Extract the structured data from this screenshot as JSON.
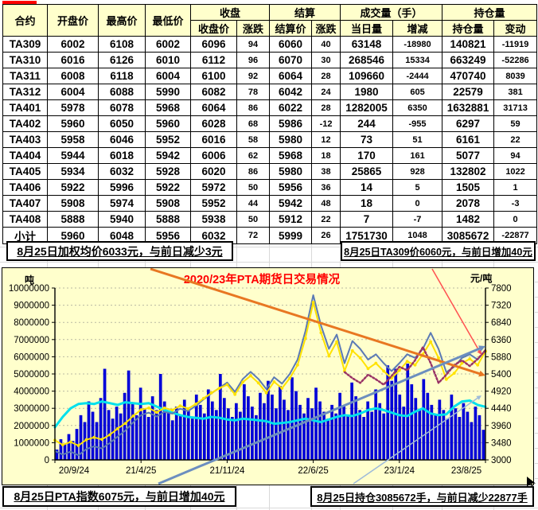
{
  "table": {
    "headers": {
      "top": [
        {
          "label": "合约",
          "rowspan": 2
        },
        {
          "label": "开盘价",
          "rowspan": 2
        },
        {
          "label": "最高价",
          "rowspan": 2
        },
        {
          "label": "最低价",
          "rowspan": 2
        },
        {
          "label": "收盘",
          "colspan": 2
        },
        {
          "label": "结算",
          "colspan": 2
        },
        {
          "label": "成交量（手）",
          "colspan": 2
        },
        {
          "label": "持仓量",
          "colspan": 2
        }
      ],
      "sub": [
        "收盘价",
        "涨跌",
        "结算价",
        "涨跌",
        "当日量",
        "增减",
        "持仓量",
        "变动"
      ]
    },
    "rows": [
      [
        "TA309",
        6002,
        6108,
        6002,
        6096,
        94,
        6060,
        40,
        63148,
        -18980,
        140821,
        -11919
      ],
      [
        "TA310",
        6016,
        6126,
        6010,
        6112,
        96,
        6070,
        30,
        268546,
        15334,
        663249,
        -52286
      ],
      [
        "TA311",
        6008,
        6118,
        6004,
        6100,
        92,
        6064,
        28,
        109660,
        -2444,
        470740,
        8039
      ],
      [
        "TA312",
        6004,
        6088,
        5990,
        6082,
        78,
        6042,
        24,
        1980,
        605,
        22579,
        381
      ],
      [
        "TA401",
        5978,
        6078,
        5968,
        6064,
        86,
        6022,
        28,
        1282005,
        6350,
        1632881,
        31713
      ],
      [
        "TA402",
        5960,
        6050,
        5960,
        6028,
        68,
        5986,
        -12,
        244,
        -955,
        6297,
        59
      ],
      [
        "TA403",
        5958,
        6046,
        5952,
        6016,
        58,
        5980,
        12,
        73,
        51,
        6161,
        22
      ],
      [
        "TA404",
        5944,
        6018,
        5942,
        6006,
        62,
        5968,
        18,
        170,
        161,
        5077,
        94
      ],
      [
        "TA405",
        5934,
        6032,
        5928,
        6020,
        86,
        5980,
        38,
        25865,
        928,
        132802,
        1022
      ],
      [
        "TA406",
        5922,
        5996,
        5922,
        5972,
        50,
        5956,
        36,
        14,
        5,
        1505,
        1
      ],
      [
        "TA407",
        5908,
        5974,
        5908,
        5952,
        44,
        5942,
        48,
        18,
        0,
        2078,
        -3
      ],
      [
        "TA408",
        5888,
        5940,
        5888,
        5938,
        50,
        5912,
        22,
        7,
        -7,
        1482,
        0
      ],
      [
        "小计",
        5960,
        6048,
        5956,
        6032,
        72,
        5999,
        26,
        1751730,
        1048,
        3085672,
        -22877
      ]
    ]
  },
  "notes": {
    "top_left": "8月25日加权均价6033元，与前日减少3元",
    "top_right": "8月25日TA309价6060元，与前日增加40元",
    "bottom_left": "8月25日PTA指数6075元，与前日增加40元",
    "bottom_right": "8月25日持仓3085672手，与前日减少22877手"
  },
  "chart_data": {
    "type": "bar+line combo, dual axis",
    "title": "2020/23年PTA期货日交易情况",
    "left_axis": {
      "unit": "吨",
      "min": 0,
      "max": 10000000,
      "step": 1000000
    },
    "right_axis": {
      "unit": "元/吨",
      "min": 3000,
      "max": 7800,
      "step": 480
    },
    "x_labels": [
      "20/9/24",
      "21/4/25",
      "21/11/24",
      "22/6/25",
      "23/1/24",
      "23/8/25"
    ],
    "grid": "horizontal dotted",
    "legend": "none",
    "series": [
      {
        "name": "成交量",
        "type": "bar",
        "axis": "left",
        "color": "#0000d8",
        "values": [
          600000,
          1200000,
          900000,
          1500000,
          1100000,
          1800000,
          2600000,
          2200000,
          3400000,
          2800000,
          2200000,
          3600000,
          5300000,
          2900000,
          2400000,
          3100000,
          2700000,
          3900000,
          5200000,
          3300000,
          2600000,
          4200000,
          3000000,
          2500000,
          3700000,
          2900000,
          5000000,
          3400000,
          2800000,
          2300000,
          3100000,
          2600000,
          3500000,
          2900000,
          2400000,
          3800000,
          3200000,
          2700000,
          4100000,
          3400000,
          2900000,
          5000000,
          3600000,
          3000000,
          2500000,
          3300000,
          2800000,
          4400000,
          3700000,
          3100000,
          2600000,
          3900000,
          3300000,
          4600000,
          3800000,
          3000000,
          4300000,
          3500000,
          2900000,
          4800000,
          4000000,
          3200000,
          2700000,
          3600000,
          3000000,
          4200000,
          3400000,
          2800000,
          2400000,
          3200000,
          2700000,
          3900000,
          3100000,
          2600000,
          4500000,
          3700000,
          2900000,
          2500000,
          3400000,
          2800000,
          4100000,
          3300000,
          2700000,
          5500000,
          4600000,
          5300000,
          3800000,
          3100000,
          5600000,
          4400000,
          3600000,
          2900000,
          4700000,
          3900000,
          3200000,
          2600000,
          3500000,
          2900000,
          2400000,
          3800000,
          3000000,
          2500000,
          3300000,
          2800000,
          2200000,
          3100000,
          2600000,
          1750000
        ]
      },
      {
        "name": "持仓量",
        "type": "line",
        "axis": "left",
        "color": "#00e0ec",
        "width": 3,
        "values": [
          1900000,
          2500000,
          3000000,
          3250000,
          3300000,
          3250000,
          3400000,
          3300000,
          3200000,
          3350000,
          3300000,
          3250000,
          3300000,
          3100000,
          2900000,
          2750000,
          2600000,
          2500000,
          2450000,
          2400000,
          2500000,
          2450000,
          2350000,
          2300000,
          2400000,
          2350000,
          2300000,
          2250000,
          2100000,
          2150000,
          2200000,
          2300000,
          2400000,
          2300000,
          2200000,
          2350000,
          2500000,
          2600000,
          2550000,
          2700000,
          2900000,
          3000000,
          2900000,
          2750000,
          2600000,
          2550000,
          2800000,
          3000000,
          2700000,
          2600000,
          2650000,
          3100000,
          3400000,
          3450000,
          3200000,
          3085672
        ]
      },
      {
        "name": "PTA指数",
        "type": "line",
        "axis": "right",
        "color": "#5b7ab5",
        "width": 2,
        "values": [
          3250,
          3150,
          3230,
          3130,
          3300,
          3380,
          3320,
          3470,
          3650,
          3820,
          4050,
          4250,
          4320,
          4210,
          4340,
          4290,
          4430,
          4360,
          4510,
          4690,
          4860,
          5010,
          5160,
          4900,
          5260,
          5460,
          5260,
          4980,
          5310,
          5130,
          5400,
          5800,
          6600,
          7600,
          6750,
          6100,
          6500,
          5700,
          6320,
          6100,
          5800,
          5950,
          5700,
          5480,
          5700,
          5950,
          5850,
          6100,
          6550,
          6100,
          5450,
          5600,
          5850,
          5950,
          5800,
          6075
        ]
      },
      {
        "name": "加权均价",
        "type": "line",
        "axis": "right",
        "color": "#ffe200",
        "width": 2,
        "markers": true,
        "values": [
          3550,
          3420,
          3500,
          3400,
          3560,
          3630,
          3570,
          3700,
          3870,
          4020,
          4230,
          4400,
          4450,
          4330,
          4450,
          4390,
          4510,
          4430,
          4560,
          4720,
          4870,
          5000,
          5100,
          4830,
          5170,
          5350,
          5150,
          4870,
          5180,
          5000,
          5280,
          5650,
          6400,
          7400,
          6550,
          5900,
          6300,
          5480,
          6050,
          5850,
          5550,
          5700,
          5480,
          5280,
          5500,
          5750,
          5650,
          5950,
          6300,
          5850,
          5250,
          5420,
          5700,
          5820,
          5650,
          6033
        ]
      },
      {
        "name": "TA309",
        "type": "line",
        "axis": "right",
        "color": "#993366",
        "width": 2.5,
        "dash": "2,2.5",
        "x_start": 0.673,
        "values": [
          5450,
          5280,
          5150,
          5380,
          5250,
          5100,
          5350,
          5600,
          5500,
          5780,
          6150,
          5700,
          5150,
          5380,
          5650,
          5780,
          5620,
          5820,
          6060
        ]
      }
    ],
    "annotations": [
      {
        "name": "orange-downtrend-arrow",
        "color": "#e87722",
        "width": 3,
        "from": [
          186,
          1
        ],
        "to": [
          607,
          135
        ],
        "arrow": 8
      },
      {
        "name": "red-downtrend-arrow",
        "color": "#ff5050",
        "width": 1.5,
        "from": [
          540,
          1
        ],
        "to": [
          602,
          109
        ],
        "arrow": 6
      },
      {
        "name": "blue-uptrend-arrow",
        "color": "#6c8ebf",
        "width": 3,
        "from": [
          196,
          271
        ],
        "to": [
          607,
          98
        ],
        "arrow": 8
      },
      {
        "name": "lightblue-uptrend-arrow",
        "color": "#9dbad9",
        "width": 1.5,
        "from": [
          441,
          271
        ],
        "to": [
          602,
          160
        ],
        "arrow": 6
      }
    ]
  }
}
